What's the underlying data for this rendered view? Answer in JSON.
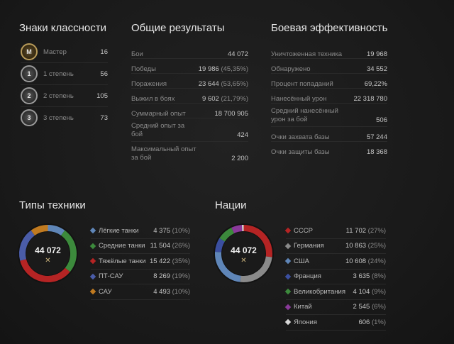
{
  "badges": {
    "title": "Знаки классности",
    "items": [
      {
        "icon": "master-badge-icon",
        "glyph": "M",
        "label": "Мастер",
        "count": "16"
      },
      {
        "icon": "class-1-badge-icon",
        "glyph": "1",
        "label": "1 степень",
        "count": "56"
      },
      {
        "icon": "class-2-badge-icon",
        "glyph": "2",
        "label": "2 степень",
        "count": "105"
      },
      {
        "icon": "class-3-badge-icon",
        "glyph": "3",
        "label": "3 степень",
        "count": "73"
      }
    ]
  },
  "overall": {
    "title": "Общие результаты",
    "rows": [
      {
        "label": "Бои",
        "value": "44 072",
        "pct": ""
      },
      {
        "label": "Победы",
        "value": "19 986",
        "pct": "(45,35%)"
      },
      {
        "label": "Поражения",
        "value": "23 644",
        "pct": "(53,65%)"
      },
      {
        "label": "Выжил в боях",
        "value": "9 602",
        "pct": "(21,79%)"
      },
      {
        "label": "Суммарный опыт",
        "value": "18 700 905",
        "pct": ""
      },
      {
        "label": "Средний опыт за бой",
        "value": "424",
        "pct": ""
      },
      {
        "label": "Максимальный опыт за бой",
        "value": "2 200",
        "pct": ""
      }
    ]
  },
  "combat": {
    "title": "Боевая эффективность",
    "rows": [
      {
        "label": "Уничтоженная техника",
        "value": "19 968"
      },
      {
        "label": "Обнаружено",
        "value": "34 552"
      },
      {
        "label": "Процент попаданий",
        "value": "69,22%"
      },
      {
        "label": "Нанесённый урон",
        "value": "22 318 780"
      },
      {
        "label": "Средний нанесённый урон за бой",
        "value": "506"
      },
      {
        "label": "Очки захвата базы",
        "value": "57 244"
      },
      {
        "label": "Очки защиты базы",
        "value": "18 368"
      }
    ]
  },
  "vehicle_types": {
    "title": "Типы техники",
    "total": "44 072",
    "center_icon": "crossed-swords-icon",
    "items": [
      {
        "icon": "light-tank-icon",
        "label": "Лёгкие танки",
        "value": "4 375",
        "pct": "(10%)",
        "color": "#5f86b8",
        "fraction": 0.1
      },
      {
        "icon": "medium-tank-icon",
        "label": "Средние танки",
        "value": "11 504",
        "pct": "(26%)",
        "color": "#3c8a3c",
        "fraction": 0.26
      },
      {
        "icon": "heavy-tank-icon",
        "label": "Тяжёлые танки",
        "value": "15 422",
        "pct": "(35%)",
        "color": "#b52424",
        "fraction": 0.35
      },
      {
        "icon": "tank-destroyer-icon",
        "label": "ПТ-САУ",
        "value": "8 269",
        "pct": "(19%)",
        "color": "#4a5ca8",
        "fraction": 0.19
      },
      {
        "icon": "spg-icon",
        "label": "САУ",
        "value": "4 493",
        "pct": "(10%)",
        "color": "#c07a20",
        "fraction": 0.1
      }
    ]
  },
  "nations": {
    "title": "Нации",
    "total": "44 072",
    "center_icon": "crossed-swords-icon",
    "items": [
      {
        "icon": "ussr-icon",
        "label": "СССР",
        "value": "11 702",
        "pct": "(27%)",
        "color": "#b52424",
        "fraction": 0.27
      },
      {
        "icon": "germany-icon",
        "label": "Германия",
        "value": "10 863",
        "pct": "(25%)",
        "color": "#8a8a8a",
        "fraction": 0.25
      },
      {
        "icon": "usa-icon",
        "label": "США",
        "value": "10 608",
        "pct": "(24%)",
        "color": "#5f86b8",
        "fraction": 0.24
      },
      {
        "icon": "france-icon",
        "label": "Франция",
        "value": "3 635",
        "pct": "(8%)",
        "color": "#3b4fa0",
        "fraction": 0.08
      },
      {
        "icon": "uk-icon",
        "label": "Великобритания",
        "value": "4 104",
        "pct": "(9%)",
        "color": "#3c8a3c",
        "fraction": 0.09
      },
      {
        "icon": "china-icon",
        "label": "Китай",
        "value": "2 545",
        "pct": "(6%)",
        "color": "#8a3a9a",
        "fraction": 0.06
      },
      {
        "icon": "japan-icon",
        "label": "Япония",
        "value": "606",
        "pct": "(1%)",
        "color": "#d8d8d8",
        "fraction": 0.01
      }
    ]
  }
}
